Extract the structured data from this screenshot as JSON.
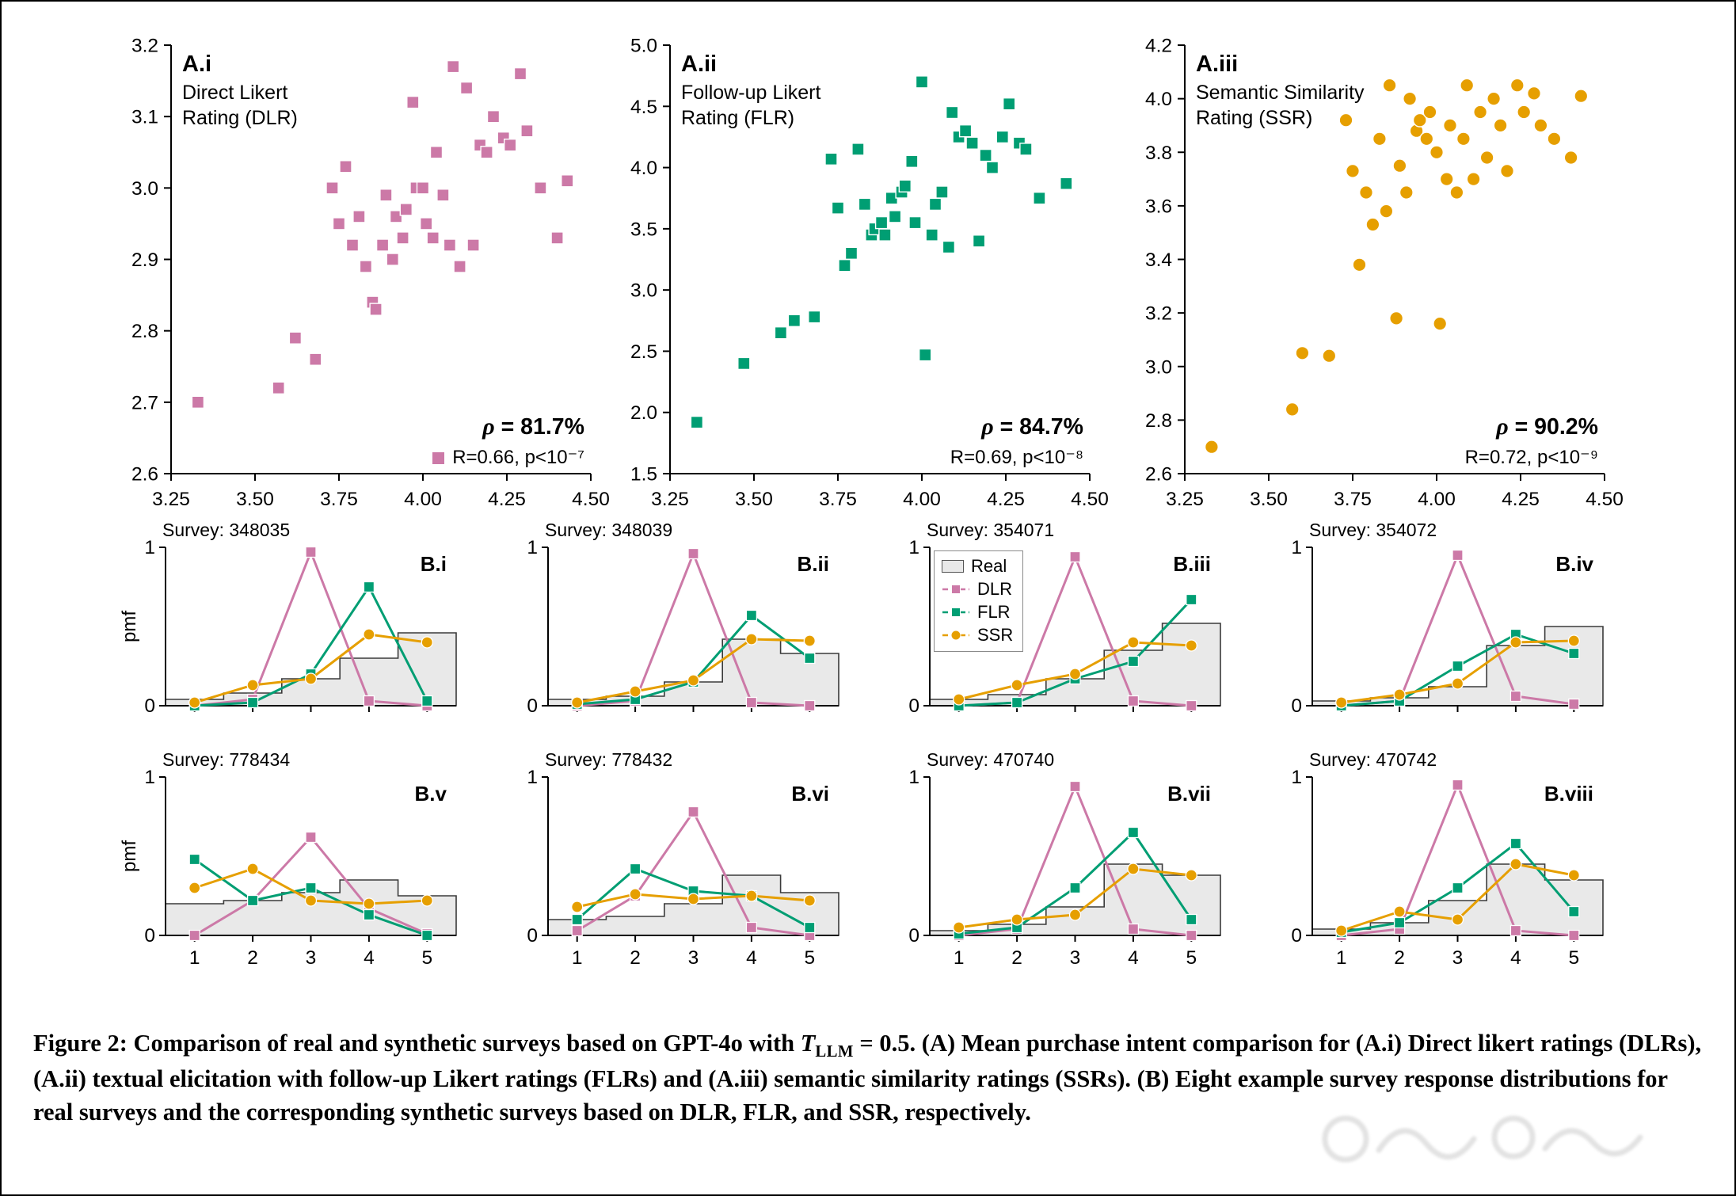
{
  "colors": {
    "dlr": "#CC79A7",
    "flr": "#009E73",
    "ssr": "#E69F00",
    "real_fill": "#E9E9E9",
    "real_edge": "#3a3a3a",
    "axis": "#000000"
  },
  "legend": {
    "real": "Real",
    "dlr": "DLR",
    "flr": "FLR",
    "ssr": "SSR"
  },
  "axis": {
    "pmf_label": "pmf",
    "pmf_ticks": [
      "0",
      "1"
    ],
    "likert_ticks": [
      "1",
      "2",
      "3",
      "4",
      "5"
    ]
  },
  "chart_data": [
    {
      "type": "scatter",
      "panel": "A.i",
      "sub": [
        "Direct Likert",
        "Rating (DLR)"
      ],
      "color_key": "dlr",
      "marker": "square",
      "xlim": [
        3.25,
        4.5
      ],
      "ylim": [
        2.6,
        3.2
      ],
      "xticks": [
        "3.25",
        "3.50",
        "3.75",
        "4.00",
        "4.25",
        "4.50"
      ],
      "yticks": [
        "2.6",
        "2.7",
        "2.8",
        "2.9",
        "3.0",
        "3.1",
        "3.2"
      ],
      "rho_symbol": "ρ",
      "rho_value": "81.7%",
      "stats": "R=0.66, p<10⁻⁷",
      "legend_marker": true,
      "points": [
        [
          3.33,
          2.7
        ],
        [
          3.57,
          2.72
        ],
        [
          3.62,
          2.79
        ],
        [
          3.68,
          2.76
        ],
        [
          3.73,
          3.0
        ],
        [
          3.75,
          2.95
        ],
        [
          3.77,
          3.03
        ],
        [
          3.79,
          2.92
        ],
        [
          3.81,
          2.96
        ],
        [
          3.83,
          2.89
        ],
        [
          3.85,
          2.84
        ],
        [
          3.86,
          2.83
        ],
        [
          3.88,
          2.92
        ],
        [
          3.89,
          2.99
        ],
        [
          3.91,
          2.9
        ],
        [
          3.92,
          2.96
        ],
        [
          3.94,
          2.93
        ],
        [
          3.95,
          2.97
        ],
        [
          3.97,
          3.12
        ],
        [
          3.98,
          3.0
        ],
        [
          4.0,
          3.0
        ],
        [
          4.01,
          2.95
        ],
        [
          4.03,
          2.93
        ],
        [
          4.04,
          3.05
        ],
        [
          4.06,
          2.99
        ],
        [
          4.08,
          2.92
        ],
        [
          4.09,
          3.17
        ],
        [
          4.11,
          2.89
        ],
        [
          4.13,
          3.14
        ],
        [
          4.15,
          2.92
        ],
        [
          4.17,
          3.06
        ],
        [
          4.19,
          3.05
        ],
        [
          4.21,
          3.1
        ],
        [
          4.24,
          3.07
        ],
        [
          4.26,
          3.06
        ],
        [
          4.29,
          3.16
        ],
        [
          4.31,
          3.08
        ],
        [
          4.35,
          3.0
        ],
        [
          4.4,
          2.93
        ],
        [
          4.43,
          3.01
        ]
      ]
    },
    {
      "type": "scatter",
      "panel": "A.ii",
      "sub": [
        "Follow-up Likert",
        "Rating (FLR)"
      ],
      "color_key": "flr",
      "marker": "square",
      "xlim": [
        3.25,
        4.5
      ],
      "ylim": [
        1.5,
        5.0
      ],
      "xticks": [
        "3.25",
        "3.50",
        "3.75",
        "4.00",
        "4.25",
        "4.50"
      ],
      "yticks": [
        "1.5",
        "2.0",
        "2.5",
        "3.0",
        "3.5",
        "4.0",
        "4.5",
        "5.0"
      ],
      "rho_symbol": "ρ",
      "rho_value": "84.7%",
      "stats": "R=0.69, p<10⁻⁸",
      "legend_marker": false,
      "points": [
        [
          3.33,
          1.92
        ],
        [
          3.47,
          2.4
        ],
        [
          3.58,
          2.65
        ],
        [
          3.62,
          2.75
        ],
        [
          3.68,
          2.78
        ],
        [
          3.73,
          4.07
        ],
        [
          3.75,
          3.67
        ],
        [
          3.77,
          3.2
        ],
        [
          3.79,
          3.3
        ],
        [
          3.81,
          4.15
        ],
        [
          3.83,
          3.7
        ],
        [
          3.85,
          3.45
        ],
        [
          3.86,
          3.5
        ],
        [
          3.88,
          3.55
        ],
        [
          3.89,
          3.45
        ],
        [
          3.91,
          3.75
        ],
        [
          3.92,
          3.6
        ],
        [
          3.94,
          3.8
        ],
        [
          3.95,
          3.85
        ],
        [
          3.97,
          4.05
        ],
        [
          3.98,
          3.55
        ],
        [
          4.0,
          4.7
        ],
        [
          4.01,
          2.47
        ],
        [
          4.03,
          3.45
        ],
        [
          4.04,
          3.7
        ],
        [
          4.06,
          3.8
        ],
        [
          4.08,
          3.35
        ],
        [
          4.09,
          4.45
        ],
        [
          4.11,
          4.25
        ],
        [
          4.13,
          4.3
        ],
        [
          4.15,
          4.2
        ],
        [
          4.17,
          3.4
        ],
        [
          4.19,
          4.1
        ],
        [
          4.21,
          4.0
        ],
        [
          4.24,
          4.25
        ],
        [
          4.26,
          4.52
        ],
        [
          4.29,
          4.2
        ],
        [
          4.31,
          4.15
        ],
        [
          4.35,
          3.75
        ],
        [
          4.43,
          3.87
        ]
      ]
    },
    {
      "type": "scatter",
      "panel": "A.iii",
      "sub": [
        "Semantic Similarity",
        "Rating (SSR)"
      ],
      "color_key": "ssr",
      "marker": "circle",
      "xlim": [
        3.25,
        4.5
      ],
      "ylim": [
        2.6,
        4.2
      ],
      "xticks": [
        "3.25",
        "3.50",
        "3.75",
        "4.00",
        "4.25",
        "4.50"
      ],
      "yticks": [
        "2.6",
        "2.8",
        "3.0",
        "3.2",
        "3.4",
        "3.6",
        "3.8",
        "4.0",
        "4.2"
      ],
      "rho_symbol": "ρ",
      "rho_value": "90.2%",
      "stats": "R=0.72, p<10⁻⁹",
      "legend_marker": false,
      "points": [
        [
          3.33,
          2.7
        ],
        [
          3.57,
          2.84
        ],
        [
          3.6,
          3.05
        ],
        [
          3.68,
          3.04
        ],
        [
          3.73,
          3.92
        ],
        [
          3.75,
          3.73
        ],
        [
          3.77,
          3.38
        ],
        [
          3.79,
          3.65
        ],
        [
          3.81,
          3.53
        ],
        [
          3.83,
          3.85
        ],
        [
          3.85,
          3.58
        ],
        [
          3.86,
          4.05
        ],
        [
          3.88,
          3.18
        ],
        [
          3.89,
          3.75
        ],
        [
          3.91,
          3.65
        ],
        [
          3.92,
          4.0
        ],
        [
          3.94,
          3.88
        ],
        [
          3.95,
          3.92
        ],
        [
          3.97,
          3.85
        ],
        [
          3.98,
          3.95
        ],
        [
          4.0,
          3.8
        ],
        [
          4.01,
          3.16
        ],
        [
          4.03,
          3.7
        ],
        [
          4.04,
          3.9
        ],
        [
          4.06,
          3.65
        ],
        [
          4.08,
          3.85
        ],
        [
          4.09,
          4.05
        ],
        [
          4.11,
          3.7
        ],
        [
          4.13,
          3.95
        ],
        [
          4.15,
          3.78
        ],
        [
          4.17,
          4.0
        ],
        [
          4.19,
          3.9
        ],
        [
          4.21,
          3.73
        ],
        [
          4.24,
          4.05
        ],
        [
          4.26,
          3.95
        ],
        [
          4.29,
          4.02
        ],
        [
          4.31,
          3.9
        ],
        [
          4.35,
          3.85
        ],
        [
          4.4,
          3.78
        ],
        [
          4.43,
          4.01
        ]
      ]
    },
    {
      "type": "pmf",
      "panel": "B.i",
      "survey": "Survey: 348035",
      "x": [
        1,
        2,
        3,
        4,
        5
      ],
      "real": [
        0.04,
        0.08,
        0.17,
        0.3,
        0.46
      ],
      "dlr": [
        0.0,
        0.04,
        0.97,
        0.03,
        0.0
      ],
      "flr": [
        0.0,
        0.02,
        0.2,
        0.75,
        0.03
      ],
      "ssr": [
        0.02,
        0.13,
        0.17,
        0.45,
        0.4
      ],
      "show_ylabel": true,
      "show_xticklabels": false,
      "legend": false
    },
    {
      "type": "pmf",
      "panel": "B.ii",
      "survey": "Survey: 348039",
      "x": [
        1,
        2,
        3,
        4,
        5
      ],
      "real": [
        0.04,
        0.06,
        0.15,
        0.42,
        0.33
      ],
      "dlr": [
        0.0,
        0.03,
        0.96,
        0.02,
        0.0
      ],
      "flr": [
        0.01,
        0.04,
        0.15,
        0.57,
        0.3
      ],
      "ssr": [
        0.02,
        0.09,
        0.16,
        0.42,
        0.41
      ],
      "show_ylabel": false,
      "show_xticklabels": false,
      "legend": false
    },
    {
      "type": "pmf",
      "panel": "B.iii",
      "survey": "Survey: 354071",
      "x": [
        1,
        2,
        3,
        4,
        5
      ],
      "real": [
        0.04,
        0.07,
        0.17,
        0.35,
        0.52
      ],
      "dlr": [
        0.0,
        0.02,
        0.94,
        0.03,
        0.0
      ],
      "flr": [
        0.0,
        0.02,
        0.17,
        0.28,
        0.67
      ],
      "ssr": [
        0.04,
        0.13,
        0.2,
        0.4,
        0.38
      ],
      "show_ylabel": false,
      "show_xticklabels": false,
      "legend": true
    },
    {
      "type": "pmf",
      "panel": "B.iv",
      "survey": "Survey: 354072",
      "x": [
        1,
        2,
        3,
        4,
        5
      ],
      "real": [
        0.03,
        0.05,
        0.12,
        0.38,
        0.5
      ],
      "dlr": [
        0.0,
        0.03,
        0.95,
        0.06,
        0.01
      ],
      "flr": [
        0.0,
        0.03,
        0.25,
        0.45,
        0.33
      ],
      "ssr": [
        0.02,
        0.07,
        0.14,
        0.4,
        0.41
      ],
      "show_ylabel": false,
      "show_xticklabels": false,
      "legend": false
    },
    {
      "type": "pmf",
      "panel": "B.v",
      "survey": "Survey: 778434",
      "x": [
        1,
        2,
        3,
        4,
        5
      ],
      "real": [
        0.2,
        0.22,
        0.27,
        0.35,
        0.25
      ],
      "dlr": [
        0.0,
        0.22,
        0.62,
        0.17,
        0.01
      ],
      "flr": [
        0.48,
        0.22,
        0.3,
        0.13,
        0.0
      ],
      "ssr": [
        0.3,
        0.42,
        0.22,
        0.2,
        0.22
      ],
      "show_ylabel": true,
      "show_xticklabels": true,
      "legend": false
    },
    {
      "type": "pmf",
      "panel": "B.vi",
      "survey": "Survey: 778432",
      "x": [
        1,
        2,
        3,
        4,
        5
      ],
      "real": [
        0.1,
        0.12,
        0.2,
        0.38,
        0.27
      ],
      "dlr": [
        0.03,
        0.25,
        0.78,
        0.05,
        0.0
      ],
      "flr": [
        0.1,
        0.42,
        0.28,
        0.25,
        0.05
      ],
      "ssr": [
        0.18,
        0.26,
        0.23,
        0.25,
        0.22
      ],
      "show_ylabel": false,
      "show_xticklabels": true,
      "legend": false
    },
    {
      "type": "pmf",
      "panel": "B.vii",
      "survey": "Survey: 470740",
      "x": [
        1,
        2,
        3,
        4,
        5
      ],
      "real": [
        0.03,
        0.07,
        0.18,
        0.45,
        0.38
      ],
      "dlr": [
        0.0,
        0.04,
        0.94,
        0.04,
        0.0
      ],
      "flr": [
        0.01,
        0.05,
        0.3,
        0.65,
        0.1
      ],
      "ssr": [
        0.05,
        0.1,
        0.13,
        0.42,
        0.38
      ],
      "show_ylabel": false,
      "show_xticklabels": true,
      "legend": false
    },
    {
      "type": "pmf",
      "panel": "B.viii",
      "survey": "Survey: 470742",
      "x": [
        1,
        2,
        3,
        4,
        5
      ],
      "real": [
        0.04,
        0.08,
        0.22,
        0.45,
        0.35
      ],
      "dlr": [
        0.0,
        0.04,
        0.95,
        0.03,
        0.0
      ],
      "flr": [
        0.02,
        0.08,
        0.3,
        0.58,
        0.15
      ],
      "ssr": [
        0.03,
        0.15,
        0.1,
        0.45,
        0.38
      ],
      "show_ylabel": false,
      "show_xticklabels": true,
      "legend": false
    }
  ],
  "caption": {
    "segments": [
      {
        "text": "Figure 2: Comparison of real and synthetic surveys based on GPT-4o with ",
        "style": "b"
      },
      {
        "text": "T",
        "style": "i"
      },
      {
        "text": "LLM",
        "style": "sub"
      },
      {
        "text": " = 0.5. (A) Mean purchase intent comparison for (A.i) Direct likert ratings (DLRs), (A.ii) textual elicitation with follow-up Likert ratings (FLRs) and (A.iii) semantic similarity ratings (SSRs). (B) Eight example survey response distributions for real surveys and the corresponding synthetic surveys based on DLR, FLR, and SSR, respectively.",
        "style": "b"
      }
    ]
  }
}
